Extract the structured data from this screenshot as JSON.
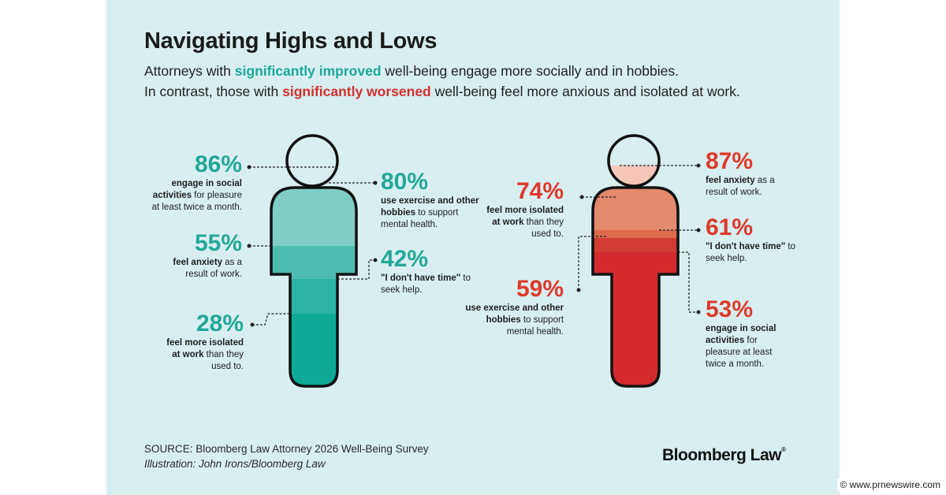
{
  "title": "Navigating Highs and Lows",
  "subtitle": {
    "line1_pre": "Attorneys with ",
    "line1_highlight": "significantly improved",
    "line1_post": " well-being engage more socially and in hobbies.",
    "line2_pre": "In contrast, those with ",
    "line2_highlight": "significantly worsened",
    "line2_post": " well-being feel more anxious and isolated at work."
  },
  "improved": {
    "stats": [
      {
        "pct": "86%",
        "bold": "engage in social activities",
        "rest": " for pleasure at least twice a month."
      },
      {
        "pct": "55%",
        "bold": "feel anxiety",
        "rest": " as a result of work."
      },
      {
        "pct": "28%",
        "bold": "feel more isolated at work",
        "rest": " than they used to."
      },
      {
        "pct": "80%",
        "bold": "use exercise and other hobbies",
        "rest": " to support mental health."
      },
      {
        "pct": "42%",
        "bold": "\"I don't have time\"",
        "rest": " to seek help."
      }
    ]
  },
  "worsened": {
    "stats": [
      {
        "pct": "87%",
        "bold": "feel anxiety",
        "rest": " as a result of work."
      },
      {
        "pct": "74%",
        "bold": "feel more isolated at work",
        "rest": " than they used to."
      },
      {
        "pct": "61%",
        "bold": "\"I don't have time\"",
        "rest": " to seek help."
      },
      {
        "pct": "59%",
        "bold": "use exercise and other hobbies",
        "rest": " to support mental health."
      },
      {
        "pct": "53%",
        "bold": "engage in social activities",
        "rest": " for pleasure at least twice a month."
      }
    ]
  },
  "source": "SOURCE: Bloomberg Law Attorney 2026 Well-Being Survey",
  "credit": "Illustration: John Irons/Bloomberg Law",
  "brand": "Bloomberg Law",
  "watermark": "www.prnewswire.com",
  "colors": {
    "background": "#d9eef0",
    "teal_light": "#7fcdc5",
    "teal_mid": "#4dbdb0",
    "teal_dark": "#2db3a3",
    "teal_darkest": "#0dab95",
    "red_light": "#f5c6b7",
    "red_mid": "#e48a6d",
    "red_mid2": "#e06a4e",
    "red_dark": "#d23c33",
    "red_darkest": "#d22a2d"
  }
}
